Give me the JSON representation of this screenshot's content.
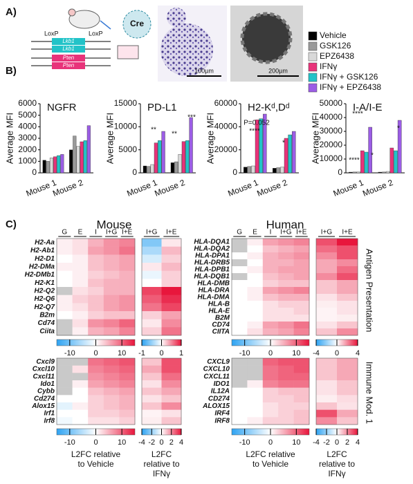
{
  "figure": {
    "panels": [
      "A)",
      "B)",
      "C)"
    ],
    "loxp": [
      "LoxP",
      "LoxP"
    ],
    "genes": [
      "Lkb1",
      "Lkb1",
      "Pten",
      "Pten"
    ],
    "cre": "Cre",
    "scalebars": [
      "100µm",
      "200µm"
    ],
    "species": [
      "Mouse",
      "Human"
    ],
    "modules": [
      "Antigen Presentation",
      "Immune Mod. 1"
    ]
  },
  "chart_data": [
    {
      "type": "bar",
      "title": "NGFR",
      "ylabel": "Average MFI",
      "categories": [
        "Mouse 1",
        "Mouse 2"
      ],
      "ylim": [
        0,
        6000
      ],
      "yticks": [
        0,
        1000,
        2000,
        3000,
        4000,
        5000,
        6000
      ],
      "series": [
        {
          "name": "Vehicle",
          "color": "#000000",
          "values": [
            1100,
            2000
          ]
        },
        {
          "name": "GSK126",
          "color": "#9a9a9a",
          "values": [
            1000,
            3200
          ]
        },
        {
          "name": "EPZ6438",
          "color": "#d9d9d9",
          "values": [
            1300,
            2300
          ]
        },
        {
          "name": "IFNγ",
          "color": "#e8337a",
          "values": [
            1400,
            2700
          ]
        },
        {
          "name": "IFNγ + GSK126",
          "color": "#22c3c8",
          "values": [
            1500,
            2800
          ]
        },
        {
          "name": "IFNγ + EPZ6438",
          "color": "#9b5de5",
          "values": [
            1600,
            4100
          ]
        }
      ],
      "annotations": []
    },
    {
      "type": "bar",
      "title": "PD-L1",
      "ylabel": "Average MFI",
      "categories": [
        "Mouse 1",
        "Mouse 2"
      ],
      "ylim": [
        0,
        15000
      ],
      "yticks": [
        0,
        5000,
        10000,
        15000
      ],
      "series": [
        {
          "name": "Vehicle",
          "color": "#000000",
          "values": [
            1500,
            2200
          ]
        },
        {
          "name": "GSK126",
          "color": "#9a9a9a",
          "values": [
            1400,
            2400
          ]
        },
        {
          "name": "EPZ6438",
          "color": "#d9d9d9",
          "values": [
            1800,
            4000
          ]
        },
        {
          "name": "IFNγ",
          "color": "#e8337a",
          "values": [
            6500,
            6800
          ]
        },
        {
          "name": "IFNγ + GSK126",
          "color": "#22c3c8",
          "values": [
            7000,
            7000
          ]
        },
        {
          "name": "IFNγ + EPZ6438",
          "color": "#9b5de5",
          "values": [
            9000,
            12000
          ]
        }
      ],
      "annotations": [
        "**",
        "**",
        "***"
      ]
    },
    {
      "type": "bar",
      "title": "H2-Kᵈ,Dᵈ",
      "ylabel": "Average MFI",
      "categories": [
        "Mouse 1",
        "Mouse 2"
      ],
      "ylim": [
        0,
        60000
      ],
      "yticks": [
        0,
        20000,
        40000,
        60000
      ],
      "series": [
        {
          "name": "Vehicle",
          "color": "#000000",
          "values": [
            5000,
            4000
          ]
        },
        {
          "name": "GSK126",
          "color": "#9a9a9a",
          "values": [
            5500,
            4500
          ]
        },
        {
          "name": "EPZ6438",
          "color": "#d9d9d9",
          "values": [
            6000,
            5000
          ]
        },
        {
          "name": "IFNγ",
          "color": "#e8337a",
          "values": [
            46000,
            30000
          ]
        },
        {
          "name": "IFNγ + GSK126",
          "color": "#22c3c8",
          "values": [
            47000,
            33000
          ]
        },
        {
          "name": "IFNγ + EPZ6438",
          "color": "#9b5de5",
          "values": [
            51000,
            36000
          ]
        }
      ],
      "annotations": [
        "P=0.052",
        "****",
        "*"
      ]
    },
    {
      "type": "bar",
      "title": "I-A/I-E",
      "ylabel": "Average MFI",
      "categories": [
        "Mouse 1",
        "Mouse 2"
      ],
      "ylim": [
        0,
        50000
      ],
      "yticks": [
        0,
        10000,
        20000,
        30000,
        40000,
        50000
      ],
      "series": [
        {
          "name": "Vehicle",
          "color": "#000000",
          "values": [
            500,
            500
          ]
        },
        {
          "name": "GSK126",
          "color": "#9a9a9a",
          "values": [
            600,
            600
          ]
        },
        {
          "name": "EPZ6438",
          "color": "#d9d9d9",
          "values": [
            700,
            1000
          ]
        },
        {
          "name": "IFNγ",
          "color": "#e8337a",
          "values": [
            16000,
            18000
          ]
        },
        {
          "name": "IFNγ + GSK126",
          "color": "#22c3c8",
          "values": [
            15000,
            16000
          ]
        },
        {
          "name": "IFNγ + EPZ6438",
          "color": "#9b5de5",
          "values": [
            33000,
            38000
          ]
        }
      ],
      "annotations": [
        "****",
        "****",
        "*",
        "*"
      ]
    },
    {
      "type": "heatmap",
      "columns": [
        "G",
        "E",
        "I",
        "I+G",
        "I+E"
      ],
      "rows": [
        "H2-Aa",
        "H2-Ab1",
        "H2-D1",
        "H2-DMa",
        "H2-DMb1",
        "H2-K1",
        "H2-Q2",
        "H2-Q6",
        "H2-Q7",
        "B2m",
        "Cd74",
        "Ciita"
      ],
      "zlim": [
        -15,
        15
      ],
      "zticks": [
        -10,
        0,
        10
      ],
      "values": [
        [
          1,
          2,
          5,
          7,
          8
        ],
        [
          1,
          2,
          6,
          7,
          9
        ],
        [
          0,
          1,
          4,
          5,
          6
        ],
        [
          1,
          1,
          4,
          5,
          6
        ],
        [
          0,
          1,
          3,
          4,
          5
        ],
        [
          0,
          1,
          4,
          5,
          5
        ],
        [
          null,
          2,
          3,
          5,
          5
        ],
        [
          1,
          3,
          4,
          6,
          7
        ],
        [
          1,
          2,
          4,
          6,
          7
        ],
        [
          0,
          1,
          3,
          4,
          4
        ],
        [
          null,
          2,
          7,
          8,
          10
        ],
        [
          null,
          1,
          5,
          6,
          8
        ]
      ]
    },
    {
      "type": "heatmap",
      "columns": [
        "I+G",
        "I+E"
      ],
      "zlim": [
        -1,
        1
      ],
      "zticks": [
        -1,
        0,
        1
      ],
      "values": [
        [
          -0.6,
          0.1
        ],
        [
          -0.4,
          0.3
        ],
        [
          -0.2,
          0.2
        ],
        [
          0.1,
          0.3
        ],
        [
          -0.1,
          0.2
        ],
        [
          0,
          0.2
        ],
        [
          0.8,
          1
        ],
        [
          0.7,
          0.9
        ],
        [
          0.6,
          0.8
        ],
        [
          0.2,
          0.4
        ],
        [
          0.1,
          0.5
        ],
        [
          0.2,
          0.6
        ]
      ]
    },
    {
      "type": "heatmap",
      "columns": [
        "G",
        "E",
        "I",
        "I+G",
        "I+E"
      ],
      "rows": [
        "HLA-DQA1",
        "HLA-DQA2",
        "HLA-DPA1",
        "HLA-DRB5",
        "HLA-DPB1",
        "HLA-DQB1",
        "HLA-DMB",
        "HLA-DRA",
        "HLA-DMA",
        "HLA-B",
        "HLA-E",
        "B2M",
        "CD74",
        "CIITA"
      ],
      "zlim": [
        -15,
        15
      ],
      "zticks": [
        -10,
        0,
        10
      ],
      "values": [
        [
          null,
          1,
          6,
          7,
          8
        ],
        [
          null,
          0,
          4,
          5,
          6
        ],
        [
          0,
          1,
          5,
          6,
          7
        ],
        [
          null,
          0,
          5,
          5,
          6
        ],
        [
          0,
          1,
          5,
          6,
          6
        ],
        [
          null,
          0,
          4,
          5,
          6
        ],
        [
          0,
          0,
          3,
          4,
          4
        ],
        [
          0,
          1,
          6,
          7,
          8
        ],
        [
          0,
          1,
          4,
          5,
          5
        ],
        [
          0,
          0,
          2,
          3,
          3
        ],
        [
          0,
          0,
          2,
          2,
          3
        ],
        [
          0,
          0,
          2,
          2,
          2
        ],
        [
          0,
          1,
          6,
          7,
          9
        ],
        [
          0,
          2,
          5,
          6,
          8
        ]
      ]
    },
    {
      "type": "heatmap",
      "columns": [
        "I+G",
        "I+E"
      ],
      "zlim": [
        -4,
        4
      ],
      "zticks": [
        -4,
        0,
        4
      ],
      "values": [
        [
          3,
          4
        ],
        [
          2.5,
          3
        ],
        [
          2,
          3
        ],
        [
          1.5,
          2
        ],
        [
          1.5,
          2.5
        ],
        [
          2,
          3
        ],
        [
          1,
          1.5
        ],
        [
          1,
          1.5
        ],
        [
          0.5,
          1
        ],
        [
          0.3,
          0.5
        ],
        [
          0.2,
          0.5
        ],
        [
          0.2,
          0.3
        ],
        [
          0.5,
          1
        ],
        [
          1,
          2
        ]
      ]
    },
    {
      "type": "heatmap",
      "rows": [
        "Cxcl9",
        "Cxcl10",
        "Cxcl11",
        "Ido1",
        "Cybb",
        "Cd274",
        "Alox15",
        "Irf1",
        "Irf8"
      ],
      "zlim": [
        -15,
        15
      ],
      "zticks": [
        -10,
        0,
        10
      ],
      "caption": [
        "L2FC relative",
        "to Vehicle"
      ],
      "values": [
        [
          null,
          null,
          9,
          10,
          11
        ],
        [
          null,
          2,
          8,
          9,
          10
        ],
        [
          null,
          null,
          7,
          8,
          9
        ],
        [
          null,
          1,
          6,
          7,
          8
        ],
        [
          null,
          0,
          4,
          5,
          6
        ],
        [
          0,
          0,
          3,
          4,
          5
        ],
        [
          -2,
          1,
          3,
          4,
          5
        ],
        [
          0,
          0,
          3,
          3,
          4
        ],
        [
          -1,
          0,
          2,
          2,
          3
        ]
      ]
    },
    {
      "type": "heatmap",
      "zlim": [
        -4,
        4
      ],
      "zticks": [
        -4,
        -2,
        0,
        2,
        4
      ],
      "caption": [
        "L2FC",
        "relative to",
        "IFNγ"
      ],
      "values": [
        [
          1,
          3
        ],
        [
          1.5,
          3
        ],
        [
          1,
          2.5
        ],
        [
          0.5,
          2
        ],
        [
          1,
          1.5
        ],
        [
          0.5,
          1
        ],
        [
          1,
          2
        ],
        [
          0.2,
          0.5
        ],
        [
          0.3,
          1
        ]
      ]
    },
    {
      "type": "heatmap",
      "rows": [
        "CXCL9",
        "CXCL10",
        "CXCL11",
        "IDO1",
        "IL12A",
        "CD274",
        "ALOX15",
        "IRF4",
        "IRF8"
      ],
      "zlim": [
        -15,
        15
      ],
      "zticks": [
        -10,
        0,
        10
      ],
      "caption": [
        "L2FC relative",
        "to Vehicle"
      ],
      "values": [
        [
          null,
          null,
          10,
          11,
          11
        ],
        [
          null,
          null,
          9,
          10,
          11
        ],
        [
          null,
          null,
          9,
          10,
          10
        ],
        [
          null,
          1,
          8,
          9,
          9
        ],
        [
          0,
          0,
          3,
          4,
          4
        ],
        [
          0,
          0,
          3,
          3,
          4
        ],
        [
          0,
          0,
          2,
          3,
          3
        ],
        [
          0,
          0,
          2,
          3,
          4
        ],
        [
          0,
          1,
          3,
          3,
          4
        ]
      ]
    },
    {
      "type": "heatmap",
      "zlim": [
        -4,
        4
      ],
      "zticks": [
        -4,
        -2,
        0,
        2,
        4
      ],
      "caption": [
        "L2FC",
        "relative to",
        "IFNγ"
      ],
      "values": [
        [
          1,
          1.5
        ],
        [
          1,
          1.5
        ],
        [
          1,
          1.5
        ],
        [
          0.5,
          1
        ],
        [
          0.5,
          1
        ],
        [
          0.3,
          0.6
        ],
        [
          1,
          0.5
        ],
        [
          3,
          1.5
        ],
        [
          2,
          1
        ]
      ]
    }
  ]
}
